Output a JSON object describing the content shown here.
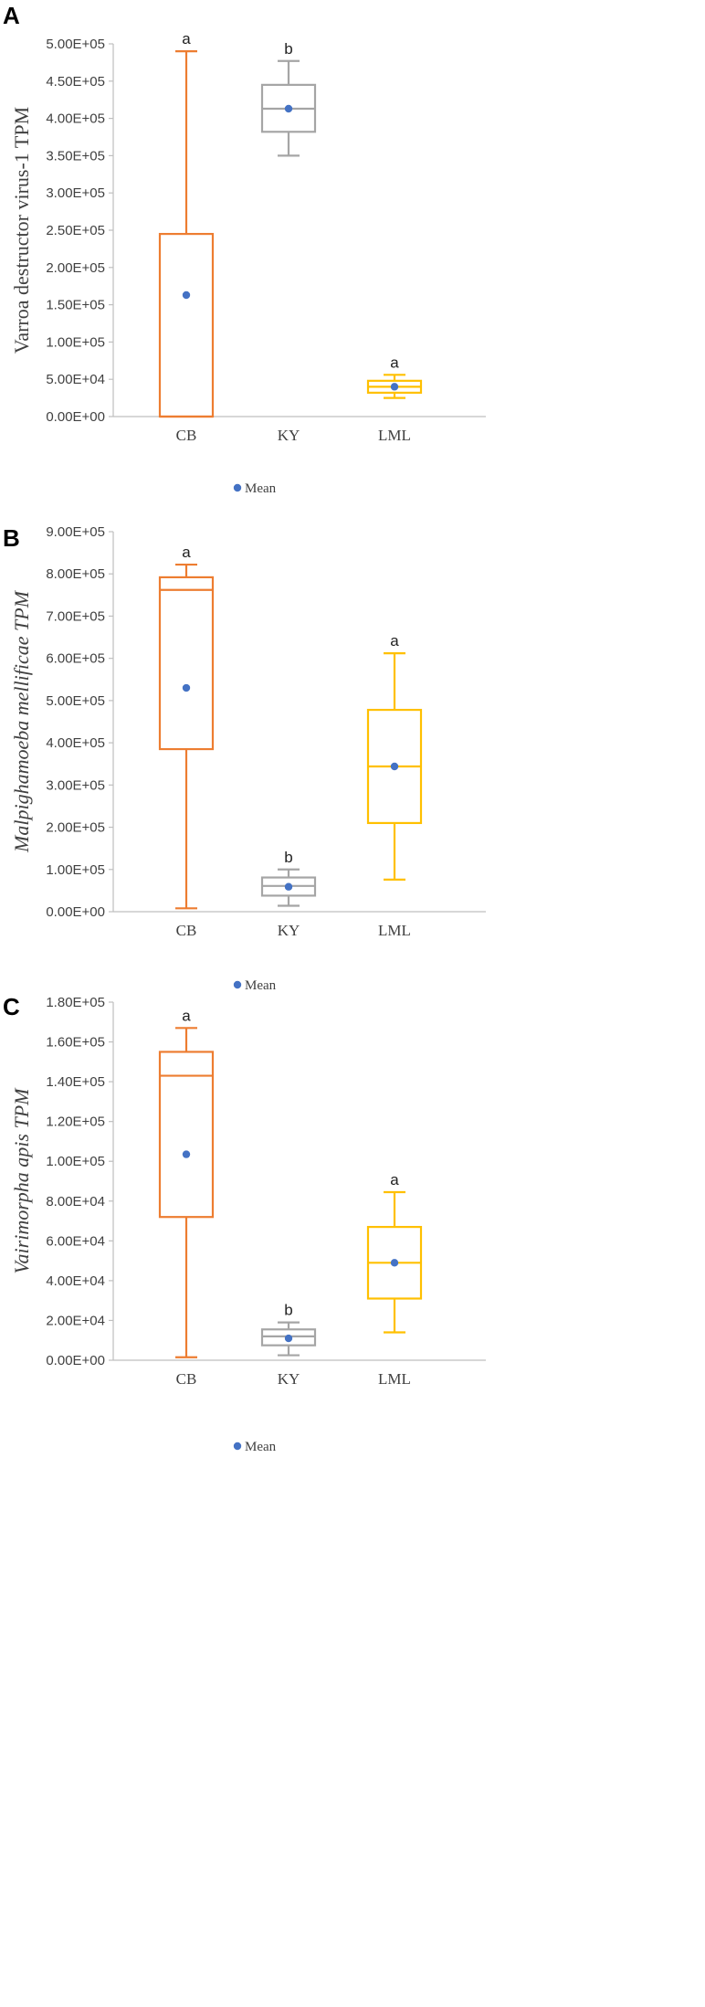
{
  "chart_data": [
    {
      "type": "box",
      "panel": "A",
      "ylabel": "Varroa destructor virus-1 TPM",
      "ylabel_italic": false,
      "ylim": [
        0,
        500000
      ],
      "ytick_step": 50000,
      "yticks": [
        "0.00E+00",
        "5.00E+04",
        "1.00E+05",
        "1.50E+05",
        "2.00E+05",
        "2.50E+05",
        "3.00E+05",
        "3.50E+05",
        "4.00E+05",
        "4.50E+05",
        "5.00E+05"
      ],
      "categories": [
        "CB",
        "KY",
        "LML"
      ],
      "colors": [
        "#ed7d31",
        "#a5a5a5",
        "#ffc000"
      ],
      "mean_color": "#4472c4",
      "boxes": [
        {
          "min": 0,
          "q1": 0,
          "median": 0,
          "q3": 245000,
          "max": 490000,
          "mean": 163000,
          "letter": "a"
        },
        {
          "min": 350000,
          "q1": 382000,
          "median": 413000,
          "q3": 445000,
          "max": 477000,
          "mean": 413000,
          "letter": "b"
        },
        {
          "min": 25000,
          "q1": 32000,
          "median": 40000,
          "q3": 48000,
          "max": 56000,
          "mean": 40000,
          "letter": "a"
        }
      ],
      "legend": "Mean"
    },
    {
      "type": "box",
      "panel": "B",
      "ylabel": "Malpighamoeba mellificae  TPM",
      "ylabel_italic": true,
      "ylim": [
        0,
        900000
      ],
      "ytick_step": 100000,
      "yticks": [
        "0.00E+00",
        "1.00E+05",
        "2.00E+05",
        "3.00E+05",
        "4.00E+05",
        "5.00E+05",
        "6.00E+05",
        "7.00E+05",
        "8.00E+05",
        "9.00E+05"
      ],
      "categories": [
        "CB",
        "KY",
        "LML"
      ],
      "colors": [
        "#ed7d31",
        "#a5a5a5",
        "#ffc000"
      ],
      "mean_color": "#4472c4",
      "boxes": [
        {
          "min": 8000,
          "q1": 385000,
          "median": 762000,
          "q3": 792000,
          "max": 822000,
          "mean": 530000,
          "letter": "a"
        },
        {
          "min": 14000,
          "q1": 38000,
          "median": 61000,
          "q3": 81000,
          "max": 100000,
          "mean": 59000,
          "letter": "b"
        },
        {
          "min": 76000,
          "q1": 210000,
          "median": 344000,
          "q3": 478000,
          "max": 612000,
          "mean": 344000,
          "letter": "a"
        }
      ],
      "legend": "Mean"
    },
    {
      "type": "box",
      "panel": "C",
      "ylabel": "Vairimorpha apis TPM",
      "ylabel_italic": true,
      "ylim": [
        0,
        180000
      ],
      "ytick_step": 20000,
      "yticks": [
        "0.00E+00",
        "2.00E+04",
        "4.00E+04",
        "6.00E+04",
        "8.00E+04",
        "1.00E+05",
        "1.20E+05",
        "1.40E+05",
        "1.60E+05",
        "1.80E+05"
      ],
      "categories": [
        "CB",
        "KY",
        "LML"
      ],
      "colors": [
        "#ed7d31",
        "#a5a5a5",
        "#ffc000"
      ],
      "mean_color": "#4472c4",
      "boxes": [
        {
          "min": 1500,
          "q1": 72000,
          "median": 143000,
          "q3": 155000,
          "max": 167000,
          "mean": 103500,
          "letter": "a"
        },
        {
          "min": 2500,
          "q1": 7500,
          "median": 12000,
          "q3": 15500,
          "max": 19000,
          "mean": 11000,
          "letter": "b"
        },
        {
          "min": 14000,
          "q1": 31000,
          "median": 49000,
          "q3": 67000,
          "max": 84500,
          "mean": 49000,
          "letter": "a"
        }
      ],
      "legend": "Mean"
    }
  ]
}
